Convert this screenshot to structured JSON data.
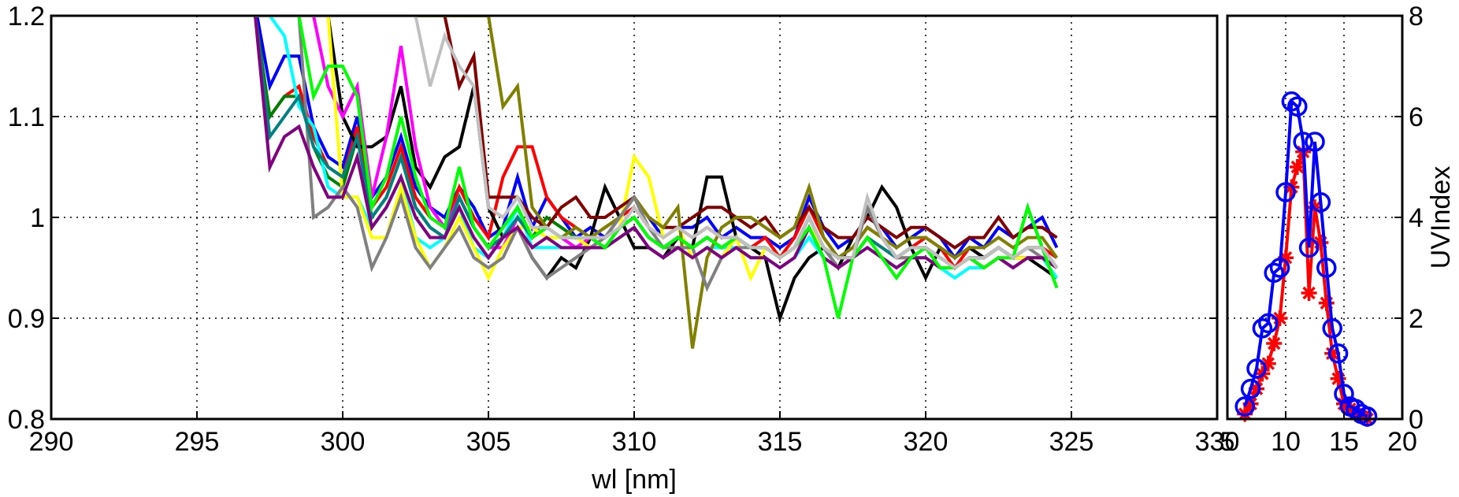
{
  "chart_data": [
    {
      "type": "line",
      "title": "",
      "xlabel": "wl [nm]",
      "ylabel": "",
      "xlim": [
        290,
        330
      ],
      "ylim": [
        0.8,
        1.2
      ],
      "xticks": [
        290,
        295,
        300,
        305,
        310,
        315,
        320,
        325,
        330
      ],
      "xtick_labels": [
        "290",
        "295",
        "300",
        "305",
        "310",
        "315",
        "320",
        "325",
        "330"
      ],
      "yticks": [
        0.8,
        0.9,
        1.0,
        1.1,
        1.2
      ],
      "ytick_labels": [
        "0.8",
        "0.9",
        "1",
        "1.1",
        "1.2"
      ],
      "grid": true,
      "x": [
        297,
        297.5,
        298,
        298.5,
        299,
        299.5,
        300,
        300.5,
        301,
        301.5,
        302,
        302.5,
        303,
        303.5,
        304,
        304.5,
        305,
        305.5,
        306,
        306.5,
        307,
        307.5,
        308,
        308.5,
        309,
        309.5,
        310,
        310.5,
        311,
        311.5,
        312,
        312.5,
        313,
        313.5,
        314,
        314.5,
        315,
        315.5,
        316,
        316.5,
        317,
        317.5,
        318,
        318.5,
        319,
        319.5,
        320,
        320.5,
        321,
        321.5,
        322,
        322.5,
        323,
        323.5,
        324,
        324.5
      ],
      "series": [
        {
          "color": "#0000ff",
          "values": [
            1.21,
            1.13,
            1.16,
            1.16,
            1.09,
            1.06,
            1.05,
            1.1,
            1.02,
            1.04,
            1.08,
            1.03,
            1.01,
            1.0,
            1.03,
            1.01,
            0.98,
            0.99,
            1.04,
            0.99,
            1.02,
            1.0,
            0.98,
            0.99,
            0.98,
            1.0,
            1.02,
            1.0,
            0.98,
            0.99,
            0.99,
            1.0,
            0.98,
            0.99,
            0.98,
            0.98,
            0.97,
            0.98,
            1.02,
            0.99,
            0.97,
            0.98,
            1.0,
            0.99,
            0.97,
            0.98,
            0.99,
            0.98,
            0.96,
            0.98,
            0.97,
            0.99,
            0.98,
            0.99,
            1.0,
            0.97
          ]
        },
        {
          "color": "#ff0000",
          "values": [
            1.2,
            1.1,
            1.12,
            1.13,
            1.08,
            1.05,
            1.04,
            1.09,
            1.01,
            1.03,
            1.07,
            1.02,
            1.0,
            0.99,
            1.03,
            1.0,
            0.98,
            1.04,
            1.07,
            1.07,
            1.02,
            1.0,
            0.99,
            0.98,
            0.99,
            1.0,
            1.01,
            0.99,
            0.98,
            0.99,
            0.98,
            0.99,
            0.98,
            0.98,
            0.97,
            0.98,
            0.96,
            0.98,
            1.01,
            0.98,
            0.96,
            0.97,
            0.99,
            0.98,
            0.96,
            0.97,
            0.98,
            0.97,
            0.95,
            0.97,
            0.96,
            0.97,
            0.96,
            0.97,
            0.97,
            0.96
          ]
        },
        {
          "color": "#008000",
          "values": [
            1.2,
            1.1,
            1.12,
            1.12,
            1.07,
            1.04,
            1.03,
            1.08,
            1.0,
            1.02,
            1.06,
            1.01,
            0.99,
            0.98,
            1.02,
            0.99,
            0.97,
            0.98,
            1.0,
            0.98,
            1.0,
            0.99,
            0.98,
            0.98,
            0.97,
            0.99,
            1.0,
            0.98,
            0.97,
            0.98,
            0.97,
            0.98,
            0.97,
            0.98,
            0.97,
            0.97,
            0.96,
            0.97,
            1.0,
            0.97,
            0.96,
            0.96,
            0.98,
            0.97,
            0.96,
            0.97,
            0.97,
            0.96,
            0.95,
            0.96,
            0.96,
            0.97,
            0.96,
            0.97,
            0.97,
            0.95
          ]
        },
        {
          "color": "#000000",
          "values": [
            1.2,
            1.2,
            1.2,
            1.2,
            1.2,
            1.2,
            1.1,
            1.07,
            1.07,
            1.08,
            1.13,
            1.05,
            1.03,
            1.06,
            1.07,
            1.13,
            1.01,
            0.98,
            0.99,
            0.96,
            0.94,
            0.96,
            0.95,
            0.98,
            1.03,
            1.0,
            0.97,
            0.97,
            0.96,
            0.98,
            0.97,
            1.04,
            1.04,
            0.98,
            0.97,
            0.96,
            0.9,
            0.94,
            0.96,
            0.97,
            0.95,
            0.98,
            1.0,
            1.03,
            1.01,
            0.97,
            0.94,
            0.97,
            0.96,
            0.97,
            0.96,
            0.97,
            0.96,
            0.96,
            0.95,
            0.94
          ]
        },
        {
          "color": "#00ffff",
          "values": [
            1.2,
            1.2,
            1.18,
            1.11,
            1.09,
            1.03,
            1.02,
            1.02,
            0.99,
            1.01,
            1.04,
            0.98,
            0.97,
            0.98,
            1.01,
            0.97,
            0.96,
            0.98,
            1.01,
            0.97,
            0.97,
            0.97,
            0.97,
            0.97,
            0.97,
            0.98,
            0.99,
            0.97,
            0.96,
            0.97,
            0.96,
            0.97,
            0.97,
            0.97,
            0.96,
            0.96,
            0.95,
            0.96,
            0.98,
            0.96,
            0.95,
            0.96,
            0.97,
            0.96,
            0.95,
            0.96,
            0.96,
            0.95,
            0.94,
            0.95,
            0.95,
            0.96,
            0.95,
            0.96,
            0.96,
            0.94
          ]
        },
        {
          "color": "#ff00ff",
          "values": [
            1.2,
            1.2,
            1.2,
            1.2,
            1.2,
            1.13,
            1.1,
            1.13,
            1.02,
            1.08,
            1.17,
            1.07,
            1.01,
            0.99,
            1.02,
            0.99,
            0.97,
            0.97,
            1.0,
            0.98,
            0.99,
            0.98,
            0.97,
            0.98,
            0.98,
            0.99,
            1.0,
            0.98,
            0.97,
            0.98,
            0.97,
            0.98,
            0.97,
            0.98,
            0.97,
            0.97,
            0.96,
            0.97,
            0.99,
            0.97,
            0.96,
            0.96,
            0.98,
            0.97,
            0.96,
            0.96,
            0.97,
            0.96,
            0.95,
            0.96,
            0.95,
            0.96,
            0.95,
            0.96,
            0.96,
            0.95
          ]
        },
        {
          "color": "#ffff00",
          "values": [
            1.2,
            1.2,
            1.2,
            1.2,
            1.2,
            1.2,
            1.02,
            1.02,
            0.98,
            0.98,
            1.03,
            0.98,
            0.95,
            0.97,
            1.0,
            0.97,
            0.94,
            0.97,
            0.99,
            0.99,
            0.98,
            0.98,
            0.98,
            0.97,
            0.98,
            0.99,
            1.06,
            1.04,
            0.98,
            0.99,
            0.96,
            0.97,
            0.96,
            0.98,
            0.94,
            0.97,
            0.96,
            0.97,
            0.99,
            0.97,
            0.96,
            0.96,
            0.98,
            0.97,
            0.96,
            0.96,
            0.97,
            0.96,
            0.95,
            0.96,
            0.95,
            0.96,
            0.96,
            0.96,
            0.96,
            0.95
          ]
        },
        {
          "color": "#800000",
          "values": [
            1.2,
            1.2,
            1.2,
            1.2,
            1.2,
            1.2,
            1.2,
            1.2,
            1.2,
            1.2,
            1.2,
            1.2,
            1.2,
            1.2,
            1.13,
            1.16,
            1.02,
            1.02,
            1.02,
            1.0,
            0.99,
            1.01,
            1.02,
            1.0,
            1.0,
            1.01,
            1.02,
            1.0,
            0.99,
            0.99,
            1.0,
            1.01,
            1.01,
            1.0,
            0.99,
            1.0,
            0.98,
            0.99,
            1.01,
            0.99,
            0.98,
            0.98,
            1.0,
            0.99,
            0.98,
            0.99,
            0.99,
            0.98,
            0.97,
            0.98,
            0.98,
            1.0,
            0.98,
            0.99,
            0.99,
            0.98
          ]
        },
        {
          "color": "#808000",
          "values": [
            1.2,
            1.2,
            1.2,
            1.2,
            1.2,
            1.2,
            1.2,
            1.2,
            1.2,
            1.2,
            1.2,
            1.2,
            1.2,
            1.2,
            1.2,
            1.2,
            1.2,
            1.11,
            1.13,
            1.01,
            0.99,
            0.98,
            0.99,
            0.98,
            0.99,
            1.0,
            1.02,
            1.0,
            0.99,
            1.01,
            0.87,
            0.96,
            0.99,
            1.0,
            1.0,
            0.99,
            0.98,
            0.99,
            1.03,
            0.98,
            0.96,
            0.97,
            0.99,
            0.98,
            0.97,
            0.98,
            0.98,
            0.97,
            0.96,
            0.97,
            0.97,
            0.98,
            0.97,
            0.98,
            0.98,
            0.96
          ]
        },
        {
          "color": "#808080",
          "values": [
            1.2,
            1.2,
            1.2,
            1.2,
            1.0,
            1.01,
            1.03,
            1.01,
            0.95,
            0.98,
            1.02,
            0.97,
            0.95,
            0.97,
            0.99,
            0.96,
            0.95,
            0.96,
            0.99,
            0.96,
            0.94,
            0.95,
            0.96,
            0.97,
            0.98,
            1.0,
            1.02,
            0.99,
            0.97,
            0.97,
            0.97,
            0.93,
            0.96,
            0.97,
            0.97,
            0.97,
            0.96,
            0.97,
            1.0,
            0.97,
            0.95,
            0.96,
            1.01,
            0.98,
            0.96,
            0.96,
            0.97,
            0.96,
            0.95,
            0.96,
            0.96,
            0.97,
            0.96,
            0.97,
            0.96,
            0.95
          ]
        },
        {
          "color": "#008080",
          "values": [
            1.2,
            1.08,
            1.1,
            1.12,
            1.07,
            1.05,
            1.04,
            1.08,
            1.0,
            1.02,
            1.06,
            1.01,
            0.99,
            0.98,
            1.02,
            0.99,
            0.97,
            0.98,
            1.0,
            0.98,
            0.99,
            0.98,
            0.98,
            0.98,
            0.97,
            0.99,
            1.0,
            0.98,
            0.97,
            0.98,
            0.97,
            0.98,
            0.97,
            0.98,
            0.97,
            0.97,
            0.96,
            0.97,
            1.0,
            0.97,
            0.96,
            0.96,
            0.98,
            0.97,
            0.96,
            0.97,
            0.97,
            0.96,
            0.95,
            0.96,
            0.96,
            0.97,
            0.96,
            1.01,
            0.97,
            0.95
          ]
        },
        {
          "color": "#800080",
          "values": [
            1.2,
            1.05,
            1.08,
            1.09,
            1.05,
            1.02,
            1.02,
            1.06,
            0.99,
            1.01,
            1.04,
            1.0,
            0.98,
            0.98,
            1.01,
            0.98,
            0.96,
            0.98,
            0.99,
            0.97,
            0.98,
            0.97,
            0.97,
            0.97,
            0.97,
            0.98,
            0.99,
            0.97,
            0.96,
            0.97,
            0.96,
            0.97,
            0.96,
            0.97,
            0.96,
            0.96,
            0.95,
            0.96,
            0.99,
            0.96,
            0.95,
            0.96,
            0.97,
            0.96,
            0.95,
            0.96,
            0.96,
            0.95,
            0.95,
            0.96,
            0.95,
            0.96,
            0.95,
            0.96,
            0.96,
            0.95
          ]
        },
        {
          "color": "#00ff00",
          "values": [
            1.2,
            1.2,
            1.2,
            1.2,
            1.12,
            1.15,
            1.15,
            1.12,
            1.01,
            1.04,
            1.1,
            1.04,
            1.0,
            0.99,
            1.05,
            0.99,
            0.97,
            0.99,
            1.01,
            0.98,
            0.99,
            0.98,
            0.98,
            0.98,
            0.97,
            0.99,
            1.0,
            0.98,
            0.97,
            0.98,
            0.97,
            0.98,
            0.97,
            0.98,
            0.97,
            0.97,
            0.96,
            0.97,
            0.99,
            0.96,
            0.9,
            0.96,
            0.98,
            0.96,
            0.94,
            0.96,
            0.97,
            0.95,
            0.95,
            0.96,
            0.95,
            0.96,
            0.96,
            1.01,
            0.97,
            0.93
          ]
        },
        {
          "color": "#c0c0c0",
          "values": [
            1.2,
            1.2,
            1.2,
            1.2,
            1.2,
            1.2,
            1.2,
            1.2,
            1.2,
            1.2,
            1.2,
            1.2,
            1.13,
            1.18,
            1.15,
            1.13,
            1.01,
            1.0,
            1.02,
            0.99,
            0.99,
            0.98,
            0.98,
            0.98,
            0.98,
            0.99,
            1.01,
            0.99,
            0.98,
            0.99,
            0.98,
            0.99,
            0.98,
            0.98,
            0.97,
            0.97,
            0.96,
            0.97,
            1.0,
            0.97,
            0.96,
            0.96,
            1.02,
            0.98,
            0.96,
            0.97,
            0.97,
            0.96,
            0.95,
            0.96,
            0.96,
            0.97,
            0.96,
            0.97,
            0.97,
            0.95
          ]
        }
      ]
    },
    {
      "type": "line",
      "title": "",
      "xlabel": "",
      "ylabel": "UVIndex",
      "xlim": [
        5,
        20
      ],
      "ylim": [
        0,
        8
      ],
      "xticks": [
        5,
        10,
        15,
        20
      ],
      "xtick_labels": [
        "5",
        "10",
        "15",
        "20"
      ],
      "yticks": [
        0,
        2,
        4,
        6,
        8
      ],
      "ytick_labels": [
        "0",
        "2",
        "4",
        "6",
        "8"
      ],
      "y_axis_side": "right",
      "grid": true,
      "series": [
        {
          "color": "#ff0000",
          "marker": "asterisk",
          "x": [
            6.5,
            7,
            7.5,
            8,
            8.5,
            9,
            9.5,
            10,
            10.5,
            11,
            11.5,
            12,
            12.5,
            13,
            13.5,
            14,
            14.5,
            15,
            15.5,
            16,
            16.5,
            17
          ],
          "y": [
            0.1,
            0.3,
            0.6,
            0.9,
            1.1,
            1.5,
            2.0,
            3.2,
            4.6,
            5.0,
            5.3,
            2.5,
            4.2,
            3.5,
            2.3,
            1.3,
            0.8,
            0.3,
            0.2,
            0.1,
            0.05,
            0.0
          ]
        },
        {
          "color": "#0000ff",
          "marker": "circle",
          "x": [
            6.5,
            7,
            7.5,
            8,
            8.5,
            9,
            9.5,
            10,
            10.5,
            11,
            11.5,
            12,
            12.5,
            13,
            13.5,
            14,
            14.5,
            15,
            15.5,
            16,
            16.5,
            17
          ],
          "y": [
            0.25,
            0.6,
            1.0,
            1.8,
            1.9,
            2.9,
            3.0,
            4.5,
            6.3,
            6.2,
            5.5,
            3.4,
            5.5,
            4.3,
            3.0,
            1.8,
            1.3,
            0.5,
            0.25,
            0.2,
            0.1,
            0.05
          ]
        }
      ]
    }
  ]
}
